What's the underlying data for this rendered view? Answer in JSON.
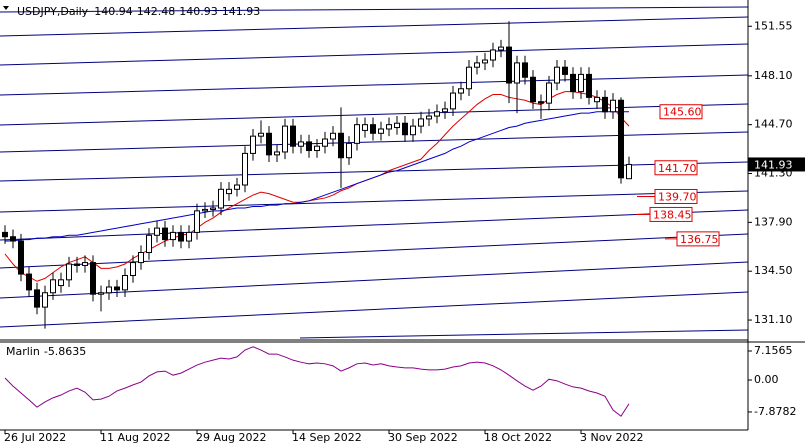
{
  "chart_data": {
    "type": "candlestick",
    "symbol": "USDJPY,Daily",
    "categories": [
      "26 Jul 2022",
      null,
      null,
      null,
      null,
      null,
      null,
      null,
      null,
      null,
      null,
      null,
      "11 Aug 2022",
      null,
      null,
      null,
      null,
      null,
      null,
      null,
      null,
      null,
      null,
      null,
      "29 Aug 2022",
      null,
      null,
      null,
      null,
      null,
      null,
      null,
      null,
      null,
      null,
      null,
      "14 Sep 2022",
      null,
      null,
      null,
      null,
      null,
      null,
      null,
      null,
      null,
      null,
      null,
      "30 Sep 2022",
      null,
      null,
      null,
      null,
      null,
      null,
      null,
      null,
      null,
      null,
      null,
      "18 Oct 2022",
      null,
      null,
      null,
      null,
      null,
      null,
      null,
      null,
      null,
      null,
      null,
      "3 Nov 2022",
      null,
      null,
      null,
      null,
      null,
      null
    ],
    "open": [
      137.2,
      136.9,
      136.6,
      134.3,
      133.2,
      132.0,
      133.0,
      133.5,
      133.9,
      135.0,
      134.9,
      135.1,
      132.9,
      133.0,
      133.4,
      133.2,
      134.2,
      135.1,
      135.8,
      137.0,
      137.5,
      136.7,
      137.2,
      136.6,
      137.2,
      138.7,
      138.8,
      138.9,
      139.9,
      140.2,
      140.5,
      142.7,
      143.9,
      144.1,
      142.6,
      142.8,
      144.6,
      143.2,
      143.5,
      142.9,
      143.2,
      143.7,
      144.1,
      142.4,
      143.4,
      144.3,
      144.7,
      144.1,
      144.4,
      144.5,
      144.8,
      144.0,
      144.6,
      145.1,
      145.3,
      145.6,
      145.8,
      146.9,
      147.2,
      148.7,
      149.0,
      149.2,
      149.9,
      150.1,
      147.6,
      149.0,
      148.0,
      146.3,
      146.2,
      147.6,
      148.7,
      148.2,
      147.0,
      148.2,
      146.3,
      146.6,
      145.6,
      146.4,
      140.94
    ],
    "high": [
      137.7,
      137.4,
      137.1,
      134.8,
      133.7,
      133.5,
      134.4,
      134.4,
      135.5,
      135.5,
      135.6,
      135.6,
      133.5,
      133.9,
      133.9,
      134.7,
      135.6,
      136.3,
      137.5,
      138.0,
      138.0,
      137.7,
      137.7,
      137.7,
      139.2,
      139.3,
      139.4,
      140.7,
      140.7,
      141.0,
      143.2,
      144.4,
      145.0,
      144.6,
      143.3,
      145.1,
      145.1,
      144.0,
      144.0,
      143.7,
      144.2,
      144.6,
      145.9,
      143.9,
      145.2,
      145.2,
      145.2,
      144.9,
      145.2,
      145.3,
      145.3,
      145.1,
      145.6,
      145.8,
      146.1,
      146.3,
      147.4,
      147.7,
      149.2,
      149.5,
      149.7,
      150.4,
      150.6,
      151.9,
      149.5,
      149.5,
      148.5,
      146.8,
      148.1,
      149.2,
      149.2,
      148.7,
      148.7,
      148.7,
      147.1,
      147.1,
      146.9,
      146.6,
      142.48
    ],
    "low": [
      136.4,
      136.1,
      133.8,
      132.7,
      131.5,
      130.5,
      132.5,
      133.0,
      133.4,
      134.4,
      134.4,
      132.4,
      131.7,
      132.5,
      132.7,
      132.7,
      133.7,
      134.6,
      135.3,
      136.5,
      136.2,
      136.2,
      136.1,
      136.1,
      136.7,
      138.2,
      138.3,
      138.4,
      139.4,
      139.7,
      140.0,
      142.2,
      143.4,
      142.1,
      142.1,
      142.3,
      142.7,
      142.7,
      142.4,
      142.4,
      142.7,
      143.2,
      140.3,
      141.9,
      142.9,
      143.8,
      143.6,
      143.6,
      143.9,
      144.0,
      143.5,
      143.5,
      144.1,
      144.6,
      144.8,
      145.1,
      145.3,
      146.4,
      146.7,
      148.2,
      148.5,
      148.7,
      149.4,
      146.2,
      145.5,
      147.5,
      145.8,
      145.1,
      145.7,
      147.1,
      147.7,
      146.5,
      146.5,
      146.1,
      145.8,
      145.1,
      145.1,
      140.6,
      140.93
    ],
    "close": [
      136.9,
      136.6,
      134.3,
      133.2,
      132.0,
      133.0,
      133.9,
      133.9,
      135.0,
      134.9,
      135.1,
      132.9,
      133.0,
      133.4,
      133.2,
      134.2,
      135.1,
      135.8,
      137.0,
      137.5,
      136.7,
      137.2,
      136.6,
      137.2,
      138.7,
      138.8,
      138.9,
      140.2,
      140.2,
      140.5,
      142.7,
      143.9,
      144.1,
      142.6,
      142.8,
      144.6,
      143.2,
      143.5,
      142.9,
      143.2,
      143.7,
      144.1,
      142.4,
      143.4,
      144.7,
      144.7,
      144.1,
      144.4,
      144.7,
      144.8,
      144.0,
      144.6,
      145.1,
      145.3,
      145.6,
      145.8,
      146.9,
      147.2,
      148.7,
      149.0,
      149.2,
      149.9,
      150.1,
      147.6,
      149.0,
      148.0,
      146.3,
      146.2,
      147.6,
      148.7,
      148.2,
      147.0,
      148.2,
      146.6,
      146.6,
      145.6,
      146.4,
      141.0,
      141.93
    ],
    "color_up": "#ffffff",
    "color_down": "#000000",
    "ylim": [
      129.85,
      153.1
    ],
    "yticks": [
      151.55,
      {
        "value": 148.1,
        "label": "148.10"
      },
      {
        "value": 144.7,
        "label": "144.70"
      },
      {
        "value": 141.3,
        "label": "141.30"
      },
      {
        "value": 137.9,
        "label": "137.90"
      },
      {
        "value": 134.5,
        "label": "134.50"
      },
      {
        "value": 131.1,
        "label": "131.10"
      }
    ],
    "moving_averages": [
      {
        "color": "#e00000",
        "values": [
          135.7,
          135.0,
          134.4,
          134.1,
          133.8,
          134.0,
          134.4,
          134.8,
          135.1,
          135.3,
          135.5,
          135.1,
          134.7,
          134.7,
          134.8,
          135.0,
          135.4,
          135.7,
          136.0,
          136.3,
          136.6,
          136.8,
          137.0,
          137.1,
          137.5,
          137.9,
          138.2,
          138.6,
          138.9,
          139.2,
          139.5,
          139.8,
          140.0,
          139.9,
          139.7,
          139.5,
          139.3,
          139.3,
          139.4,
          139.5,
          139.6,
          139.8,
          140.1,
          140.3,
          140.6,
          140.8,
          141.0,
          141.2,
          141.5,
          141.7,
          141.9,
          142.1,
          142.3,
          142.9,
          143.4,
          144.0,
          144.6,
          145.1,
          145.6,
          146.1,
          146.5,
          146.8,
          146.8,
          146.6,
          146.5,
          146.4,
          146.2,
          146.1,
          146.5,
          146.8,
          147.0,
          147.0,
          146.9,
          146.8,
          146.6,
          146.3,
          145.9,
          145.2,
          144.6
        ]
      },
      {
        "color": "#0000c8",
        "values": [
          136.6,
          136.6,
          136.7,
          136.7,
          136.8,
          136.8,
          136.9,
          136.9,
          137.0,
          137.0,
          137.1,
          137.2,
          137.3,
          137.4,
          137.5,
          137.6,
          137.7,
          137.8,
          137.9,
          138.0,
          138.1,
          138.2,
          138.3,
          138.4,
          138.5,
          138.6,
          138.7,
          138.7,
          138.8,
          138.9,
          138.9,
          139.0,
          139.0,
          139.1,
          139.1,
          139.2,
          139.2,
          139.3,
          139.4,
          139.6,
          139.8,
          140.0,
          140.2,
          140.4,
          140.6,
          140.8,
          141.0,
          141.2,
          141.4,
          141.5,
          141.7,
          141.9,
          142.1,
          142.3,
          142.5,
          142.7,
          143.0,
          143.2,
          143.5,
          143.7,
          143.9,
          144.1,
          144.3,
          144.5,
          144.6,
          144.8,
          144.9,
          145.0,
          145.1,
          145.2,
          145.3,
          145.4,
          145.5,
          145.5,
          145.6,
          145.6,
          145.6,
          145.6,
          145.6
        ]
      }
    ],
    "levels": [
      {
        "value": 145.6,
        "label": "145.60"
      },
      {
        "value": 141.7,
        "label": "141.70"
      },
      {
        "value": 139.7,
        "label": "139.70"
      },
      138.45,
      136.75
    ],
    "level_color": "#e00000",
    "indicator": {
      "type": "line",
      "name": "Marlin",
      "color": "#8b008b",
      "values": [
        0.5,
        -1.5,
        -3.2,
        -4.9,
        -6.7,
        -5.4,
        -4.4,
        -3.7,
        -2.7,
        -2.0,
        -3.0,
        -4.9,
        -4.7,
        -4.0,
        -2.7,
        -2.0,
        -1.2,
        -0.5,
        1.0,
        2.0,
        2.2,
        1.2,
        1.7,
        2.7,
        3.7,
        4.4,
        4.9,
        5.4,
        5.2,
        5.7,
        7.4,
        8.2,
        7.4,
        6.4,
        6.4,
        5.7,
        4.9,
        4.4,
        4.0,
        4.2,
        4.0,
        3.5,
        2.2,
        3.0,
        4.0,
        4.2,
        3.7,
        4.0,
        3.5,
        3.2,
        3.0,
        3.0,
        2.7,
        2.5,
        2.5,
        2.7,
        3.2,
        3.5,
        4.2,
        4.4,
        4.2,
        3.5,
        2.5,
        1.2,
        -0.2,
        -1.5,
        -2.5,
        -1.5,
        0.2,
        -0.2,
        -1.0,
        -1.7,
        -2.0,
        -2.7,
        -3.2,
        -4.0,
        -7.4,
        -8.9,
        -5.8635
      ],
      "ylim": [
        -12.33,
        9.38
      ],
      "yticks": [
        7.1565,
        {
          "value": 0,
          "label": "0.00"
        },
        -7.8782
      ]
    }
  }
}
